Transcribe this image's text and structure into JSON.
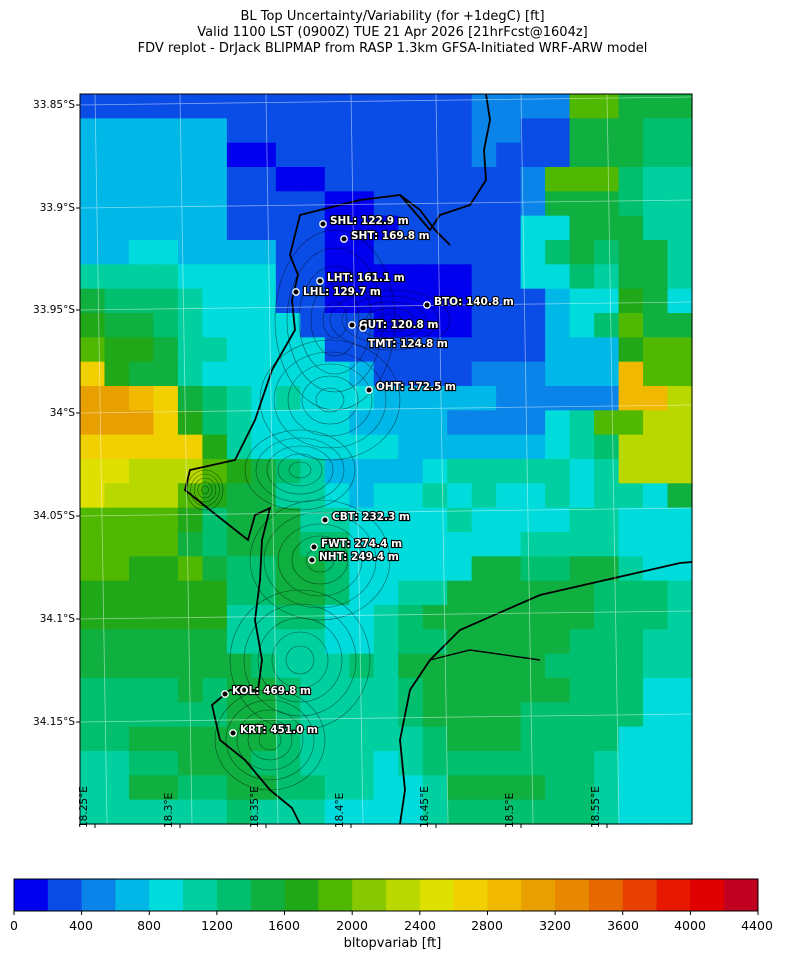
{
  "title": {
    "line1": "BL Top Uncertainty/Variability (for +1degC) [ft]",
    "line2": "Valid 1100 LST (0900Z) TUE 21 Apr 2026 [21hrFcst@1604z]",
    "line3": "FDV replot - DrJack BLIPMAP from RASP 1.3km GFSA-Initiated WRF-ARW model"
  },
  "lat_labels": [
    "33.85°S",
    "33.9°S",
    "33.95°S",
    "34°S",
    "34.05°S",
    "34.1°S",
    "34.15°S"
  ],
  "lon_labels": [
    "18.25°E",
    "18.3°E",
    "18.35°E",
    "18.4°E",
    "18.45°E",
    "18.5°E",
    "18.55°E"
  ],
  "sites": [
    {
      "label": "SHL: 122.9 m"
    },
    {
      "label": "SHT: 169.8 m"
    },
    {
      "label": "LHT: 161.1 m"
    },
    {
      "label": "LHL: 129.7 m"
    },
    {
      "label": "BTO: 140.8 m"
    },
    {
      "label": "GUT: 120.8 m"
    },
    {
      "label": "TMT: 124.8 m"
    },
    {
      "label": "OHT: 172.5 m"
    },
    {
      "label": "CBT: 232.3 m"
    },
    {
      "label": "FWT: 274.4 m"
    },
    {
      "label": "NHT: 249.4 m"
    },
    {
      "label": "KOL: 469.8 m"
    },
    {
      "label": "KRT: 451.0 m"
    }
  ],
  "colorbar": {
    "ticks": [
      "0",
      "400",
      "800",
      "1200",
      "1600",
      "2000",
      "2400",
      "2800",
      "3200",
      "3600",
      "4000",
      "4400"
    ],
    "label": "bltopvariab [ft]",
    "colors": [
      "#0000ee",
      "#0a4de6",
      "#0a84e8",
      "#00b8e8",
      "#00dcdc",
      "#00d0a0",
      "#00c070",
      "#10b040",
      "#20a818",
      "#50b800",
      "#88c800",
      "#b8d800",
      "#e0e000",
      "#f0d000",
      "#f0b800",
      "#e8a000",
      "#e88800",
      "#e86800",
      "#e84000",
      "#e81800",
      "#e00000",
      "#c00020"
    ]
  }
}
